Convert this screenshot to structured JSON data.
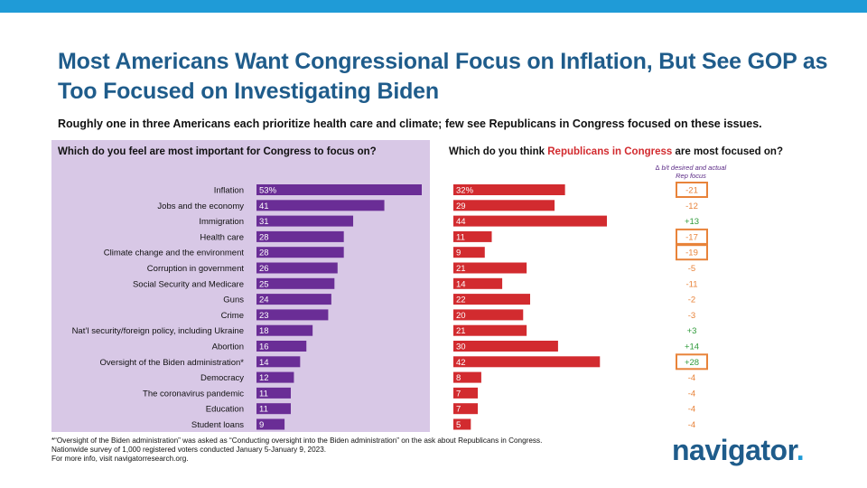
{
  "header": {
    "title": "Most Americans Want Congressional Focus on Inflation, But See GOP as Too Focused on Investigating Biden",
    "subtitle": "Roughly one in three Americans each prioritize health care and climate; few see Republicans in Congress focused on these issues."
  },
  "colors": {
    "accent_bar": "#1f9bd7",
    "title": "#1f5c8b",
    "panel": "#d8c8e6",
    "desired_bar": "#6a2d96",
    "actual_bar": "#d22b2f",
    "delta_negative": "#e8833a",
    "delta_positive": "#2e9a3a",
    "highlight_box": "#e8833a"
  },
  "chart_data": {
    "type": "bar",
    "orientation": "horizontal",
    "left_question": "Which do you feel are most important for Congress to focus on?",
    "right_question_prefix": "Which do you think ",
    "right_question_highlight": "Republicans in Congress",
    "right_question_suffix": " are most focused on?",
    "delta_header_line1": "∆ b/t desired and actual",
    "delta_header_line2": "Rep focus",
    "categories": [
      "Inflation",
      "Jobs and the economy",
      "Immigration",
      "Health care",
      "Climate change and the environment",
      "Corruption in government",
      "Social Security and Medicare",
      "Guns",
      "Crime",
      "Nat’l security/foreign policy, including Ukraine",
      "Abortion",
      "Oversight of the Biden administration*",
      "Democracy",
      "The coronavirus pandemic",
      "Education",
      "Student loans"
    ],
    "series": [
      {
        "name": "Which do you feel are most important for Congress to focus on?",
        "values": [
          53,
          41,
          31,
          28,
          28,
          26,
          25,
          24,
          23,
          18,
          16,
          14,
          12,
          11,
          11,
          9
        ],
        "labels": [
          "53%",
          "41",
          "31",
          "28",
          "28",
          "26",
          "25",
          "24",
          "23",
          "18",
          "16",
          "14",
          "12",
          "11",
          "11",
          "9"
        ]
      },
      {
        "name": "Which do you think Republicans in Congress are most focused on?",
        "values": [
          32,
          29,
          44,
          11,
          9,
          21,
          14,
          22,
          20,
          21,
          30,
          42,
          8,
          7,
          7,
          5
        ],
        "labels": [
          "32%",
          "29",
          "44",
          "11",
          "9",
          "21",
          "14",
          "22",
          "20",
          "21",
          "30",
          "42",
          "8",
          "7",
          "7",
          "5"
        ]
      }
    ],
    "delta": {
      "values": [
        -21,
        -12,
        13,
        -17,
        -19,
        -5,
        -11,
        -2,
        -3,
        3,
        14,
        28,
        -4,
        -4,
        -4,
        -4
      ],
      "labels": [
        "-21",
        "-12",
        "+13",
        "-17",
        "-19",
        "-5",
        "-11",
        "-2",
        "-3",
        "+3",
        "+14",
        "+28",
        "-4",
        "-4",
        "-4",
        "-4"
      ],
      "boxed": [
        true,
        false,
        false,
        true,
        true,
        false,
        false,
        false,
        false,
        false,
        false,
        true,
        false,
        false,
        false,
        false
      ]
    }
  },
  "footnotes": {
    "line1": "*“Oversight of the Biden administration” was asked as “Conducting oversight into the Biden administration” on the ask about Republicans in Congress.",
    "line2": "Nationwide survey of 1,000 registered voters conducted January 5-January 9, 2023.",
    "line3": "For more info, visit navigatorresearch.org."
  },
  "logo": {
    "text": "navigator",
    "dot": "."
  }
}
